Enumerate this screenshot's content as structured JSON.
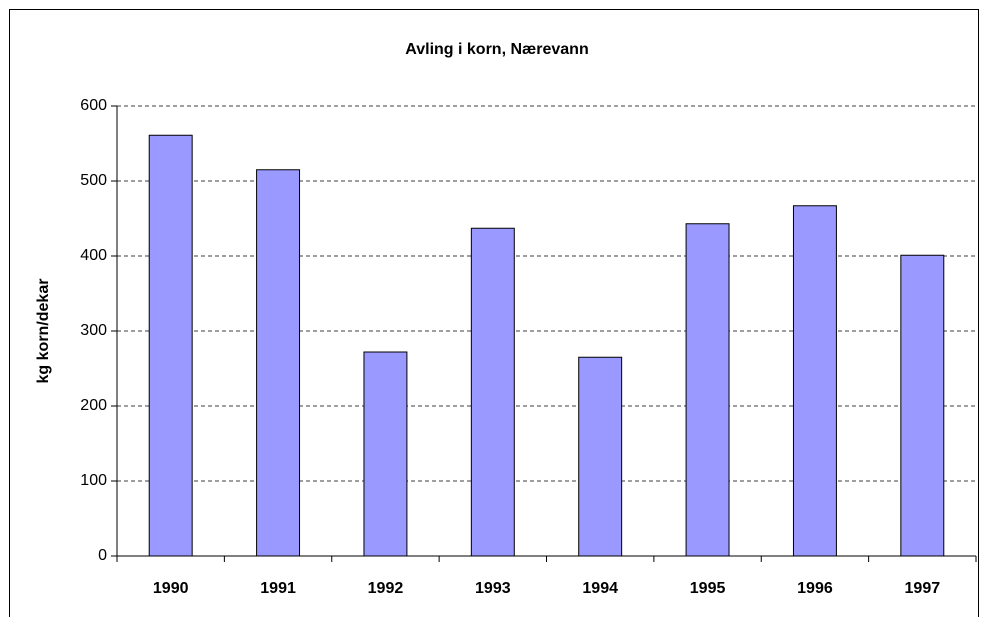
{
  "chart_data": {
    "type": "bar",
    "title": "Avling i korn, Nærevann",
    "y_label": "kg korn/dekar",
    "categories": [
      "1990",
      "1991",
      "1992",
      "1993",
      "1994",
      "1995",
      "1996",
      "1997"
    ],
    "values": [
      561,
      515,
      272,
      437,
      265,
      443,
      467,
      401
    ],
    "color": "#9999ff",
    "ylim": [
      0,
      600
    ],
    "yticks": [
      0,
      100,
      200,
      300,
      400,
      500,
      600
    ],
    "grid": true
  }
}
